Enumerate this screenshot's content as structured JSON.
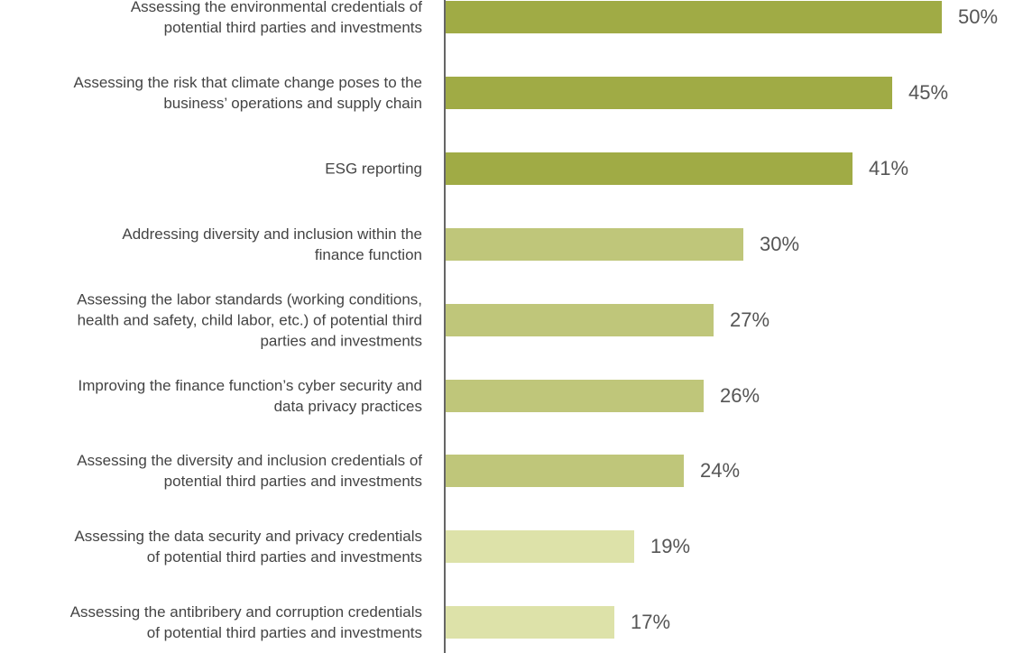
{
  "chart_data": {
    "type": "barh",
    "categories": [
      "Assessing the environmental credentials of\npotential third parties and investments",
      "Assessing the risk that climate change poses to the\nbusiness’ operations and supply chain",
      "ESG reporting",
      "Addressing diversity and inclusion within the\nfinance function",
      "Assessing the labor standards (working conditions,\nhealth and safety, child labor, etc.) of potential third\nparties and investments",
      "Improving the finance function’s cyber security and\ndata privacy practices",
      "Assessing the diversity and inclusion credentials of\npotential third parties and investments",
      "Assessing the data security and privacy credentials\nof potential third parties and investments",
      "Assessing the antibribery and corruption credentials\nof potential third parties and investments"
    ],
    "values": [
      50,
      45,
      41,
      30,
      27,
      26,
      24,
      19,
      17
    ],
    "value_labels": [
      "50%",
      "45%",
      "41%",
      "30%",
      "27%",
      "26%",
      "24%",
      "19%",
      "17%"
    ],
    "colors": [
      "#a0ab45",
      "#a0ab45",
      "#a0ab45",
      "#bfc67a",
      "#bfc67a",
      "#bfc67a",
      "#bfc67a",
      "#dde2a9",
      "#dde2a9"
    ]
  }
}
